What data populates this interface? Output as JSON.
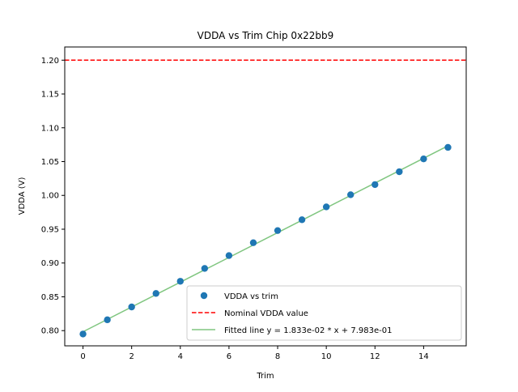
{
  "chart_data": {
    "type": "scatter",
    "title": "VDDA vs Trim Chip 0x22bb9",
    "xlabel": "Trim",
    "ylabel": "VDDA (V)",
    "xlim": [
      -0.75,
      15.75
    ],
    "ylim": [
      0.7775,
      1.2195
    ],
    "xticks": [
      0,
      2,
      4,
      6,
      8,
      10,
      12,
      14
    ],
    "xtick_labels": [
      "0",
      "2",
      "4",
      "6",
      "8",
      "10",
      "12",
      "14"
    ],
    "yticks": [
      0.8,
      0.85,
      0.9,
      0.95,
      1.0,
      1.05,
      1.1,
      1.15,
      1.2
    ],
    "ytick_labels": [
      "0.80",
      "0.85",
      "0.90",
      "0.95",
      "1.00",
      "1.05",
      "1.10",
      "1.15",
      "1.20"
    ],
    "grid": false,
    "legend_position": "lower-right",
    "series": [
      {
        "name": "VDDA vs trim",
        "kind": "scatter",
        "color": "#1f77b4",
        "x": [
          0,
          1,
          2,
          3,
          4,
          5,
          6,
          7,
          8,
          9,
          10,
          11,
          12,
          13,
          14,
          15
        ],
        "y": [
          0.795,
          0.816,
          0.835,
          0.855,
          0.873,
          0.892,
          0.911,
          0.93,
          0.948,
          0.964,
          0.983,
          1.001,
          1.016,
          1.035,
          1.054,
          1.071
        ]
      },
      {
        "name": "Nominal VDDA value",
        "kind": "hline",
        "color": "#ff0000",
        "style": "dashed",
        "y": 1.2
      },
      {
        "name": "Fitted line y = 1.833e-02 * x + 7.983e-01",
        "kind": "line",
        "color": "#2ca02c",
        "slope": 0.01833,
        "intercept": 0.7983,
        "x_range": [
          0,
          15
        ]
      }
    ]
  }
}
